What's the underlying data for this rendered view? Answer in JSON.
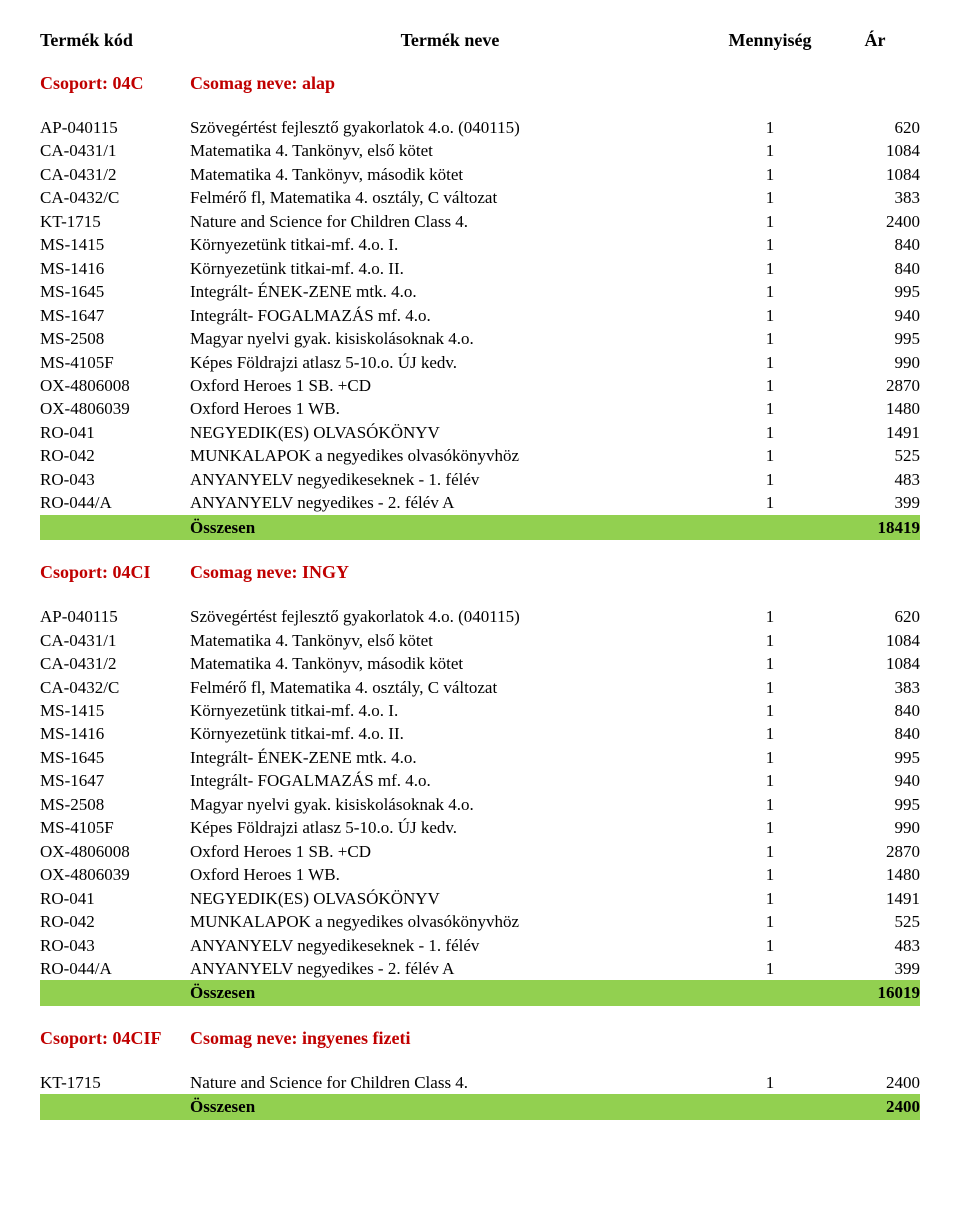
{
  "colors": {
    "group_header_text": "#c00000",
    "total_bg": "#92d050",
    "text": "#000000",
    "background": "#ffffff"
  },
  "columns": {
    "code": "Termék kód",
    "name": "Termék neve",
    "qty": "Mennyiség",
    "price": "Ár"
  },
  "total_label": "Összesen",
  "group_prefix": "Csoport: ",
  "package_prefix": "Csomag neve: ",
  "groups": [
    {
      "code": "04C",
      "package": "alap",
      "total": "18419",
      "rows": [
        {
          "code": "AP-040115",
          "name": "Szövegértést fejlesztő gyakorlatok 4.o. (040115)",
          "qty": "1",
          "price": "620"
        },
        {
          "code": "CA-0431/1",
          "name": "Matematika 4. Tankönyv, első kötet",
          "qty": "1",
          "price": "1084"
        },
        {
          "code": "CA-0431/2",
          "name": "Matematika 4. Tankönyv, második kötet",
          "qty": "1",
          "price": "1084"
        },
        {
          "code": "CA-0432/C",
          "name": "Felmérő fl, Matematika 4. osztály, C változat",
          "qty": "1",
          "price": "383"
        },
        {
          "code": "KT-1715",
          "name": "Nature and Science for Children Class 4.",
          "qty": "1",
          "price": "2400"
        },
        {
          "code": "MS-1415",
          "name": "Környezetünk titkai-mf. 4.o. I.",
          "qty": "1",
          "price": "840"
        },
        {
          "code": "MS-1416",
          "name": "Környezetünk titkai-mf. 4.o. II.",
          "qty": "1",
          "price": "840"
        },
        {
          "code": "MS-1645",
          "name": "Integrált- ÉNEK-ZENE mtk. 4.o.",
          "qty": "1",
          "price": "995"
        },
        {
          "code": "MS-1647",
          "name": "Integrált- FOGALMAZÁS mf. 4.o.",
          "qty": "1",
          "price": "940"
        },
        {
          "code": "MS-2508",
          "name": "Magyar nyelvi gyak. kisiskolásoknak 4.o.",
          "qty": "1",
          "price": "995"
        },
        {
          "code": "MS-4105F",
          "name": "Képes Földrajzi atlasz 5-10.o. ÚJ kedv.",
          "qty": "1",
          "price": "990"
        },
        {
          "code": "OX-4806008",
          "name": "Oxford Heroes 1 SB. +CD",
          "qty": "1",
          "price": "2870"
        },
        {
          "code": "OX-4806039",
          "name": "Oxford Heroes 1 WB.",
          "qty": "1",
          "price": "1480"
        },
        {
          "code": "RO-041",
          "name": "NEGYEDIK(ES) OLVASÓKÖNYV",
          "qty": "1",
          "price": "1491"
        },
        {
          "code": "RO-042",
          "name": "MUNKALAPOK a negyedikes olvasókönyvhöz",
          "qty": "1",
          "price": "525"
        },
        {
          "code": "RO-043",
          "name": "ANYANYELV negyedikeseknek - 1. félév",
          "qty": "1",
          "price": "483"
        },
        {
          "code": "RO-044/A",
          "name": "ANYANYELV negyedikes - 2. félév A",
          "qty": "1",
          "price": "399"
        }
      ]
    },
    {
      "code": "04CI",
      "package": "INGY",
      "total": "16019",
      "rows": [
        {
          "code": "AP-040115",
          "name": "Szövegértést fejlesztő gyakorlatok 4.o. (040115)",
          "qty": "1",
          "price": "620"
        },
        {
          "code": "CA-0431/1",
          "name": "Matematika 4. Tankönyv, első kötet",
          "qty": "1",
          "price": "1084"
        },
        {
          "code": "CA-0431/2",
          "name": "Matematika 4. Tankönyv, második kötet",
          "qty": "1",
          "price": "1084"
        },
        {
          "code": "CA-0432/C",
          "name": "Felmérő fl, Matematika 4. osztály, C változat",
          "qty": "1",
          "price": "383"
        },
        {
          "code": "MS-1415",
          "name": "Környezetünk titkai-mf. 4.o. I.",
          "qty": "1",
          "price": "840"
        },
        {
          "code": "MS-1416",
          "name": "Környezetünk titkai-mf. 4.o. II.",
          "qty": "1",
          "price": "840"
        },
        {
          "code": "MS-1645",
          "name": "Integrált- ÉNEK-ZENE mtk. 4.o.",
          "qty": "1",
          "price": "995"
        },
        {
          "code": "MS-1647",
          "name": "Integrált- FOGALMAZÁS mf. 4.o.",
          "qty": "1",
          "price": "940"
        },
        {
          "code": "MS-2508",
          "name": "Magyar nyelvi gyak. kisiskolásoknak 4.o.",
          "qty": "1",
          "price": "995"
        },
        {
          "code": "MS-4105F",
          "name": "Képes Földrajzi atlasz 5-10.o. ÚJ kedv.",
          "qty": "1",
          "price": "990"
        },
        {
          "code": "OX-4806008",
          "name": "Oxford Heroes 1 SB. +CD",
          "qty": "1",
          "price": "2870"
        },
        {
          "code": "OX-4806039",
          "name": "Oxford Heroes 1 WB.",
          "qty": "1",
          "price": "1480"
        },
        {
          "code": "RO-041",
          "name": "NEGYEDIK(ES) OLVASÓKÖNYV",
          "qty": "1",
          "price": "1491"
        },
        {
          "code": "RO-042",
          "name": "MUNKALAPOK a negyedikes olvasókönyvhöz",
          "qty": "1",
          "price": "525"
        },
        {
          "code": "RO-043",
          "name": "ANYANYELV negyedikeseknek - 1. félév",
          "qty": "1",
          "price": "483"
        },
        {
          "code": "RO-044/A",
          "name": "ANYANYELV negyedikes - 2. félév A",
          "qty": "1",
          "price": "399"
        }
      ]
    },
    {
      "code": "04CIF",
      "package": "ingyenes fizeti",
      "total": "2400",
      "rows": [
        {
          "code": "KT-1715",
          "name": "Nature and Science for Children Class 4.",
          "qty": "1",
          "price": "2400"
        }
      ]
    }
  ]
}
